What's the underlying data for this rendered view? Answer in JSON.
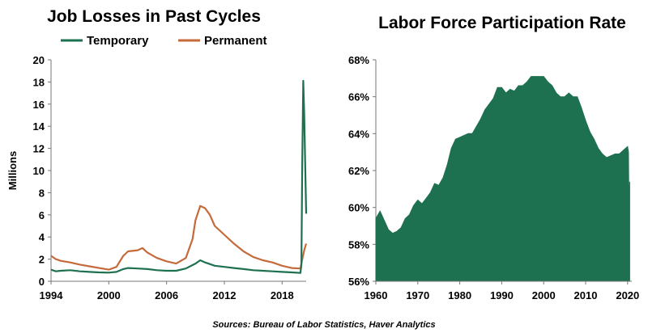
{
  "source_note": "Sources: Bureau of Labor Statistics, Haver Analytics",
  "chart_data": [
    {
      "type": "line",
      "title": "Job Losses in Past Cycles",
      "xlabel": "",
      "ylabel": "Millions",
      "xlim": [
        1994,
        2020.5
      ],
      "ylim": [
        0,
        20
      ],
      "xticks": [
        1994,
        2000,
        2006,
        2012,
        2018
      ],
      "yticks": [
        0,
        2,
        4,
        6,
        8,
        10,
        12,
        14,
        16,
        18,
        20
      ],
      "grid": false,
      "legend": "top",
      "series": [
        {
          "name": "Temporary",
          "color": "#1e7150",
          "points": [
            [
              1994,
              1.05
            ],
            [
              1994.5,
              0.9
            ],
            [
              1995,
              0.95
            ],
            [
              1996,
              1.0
            ],
            [
              1997,
              0.9
            ],
            [
              1998,
              0.85
            ],
            [
              1999,
              0.8
            ],
            [
              2000,
              0.78
            ],
            [
              2000.8,
              0.85
            ],
            [
              2001.5,
              1.1
            ],
            [
              2002,
              1.2
            ],
            [
              2003,
              1.15
            ],
            [
              2004,
              1.1
            ],
            [
              2005,
              1.0
            ],
            [
              2006,
              0.95
            ],
            [
              2007,
              0.95
            ],
            [
              2008,
              1.15
            ],
            [
              2009,
              1.6
            ],
            [
              2009.5,
              1.9
            ],
            [
              2010,
              1.7
            ],
            [
              2011,
              1.4
            ],
            [
              2012,
              1.3
            ],
            [
              2013,
              1.2
            ],
            [
              2014,
              1.1
            ],
            [
              2015,
              1.0
            ],
            [
              2016,
              0.95
            ],
            [
              2017,
              0.9
            ],
            [
              2018,
              0.85
            ],
            [
              2019,
              0.8
            ],
            [
              2019.9,
              0.75
            ],
            [
              2020.0,
              1.5
            ],
            [
              2020.1,
              11.0
            ],
            [
              2020.2,
              18.1
            ],
            [
              2020.3,
              15.0
            ],
            [
              2020.4,
              10.5
            ],
            [
              2020.5,
              6.1
            ]
          ]
        },
        {
          "name": "Permanent",
          "color": "#c46a3b",
          "points": [
            [
              1994,
              2.3
            ],
            [
              1994.5,
              2.0
            ],
            [
              1995,
              1.85
            ],
            [
              1996,
              1.7
            ],
            [
              1997,
              1.5
            ],
            [
              1998,
              1.35
            ],
            [
              1999,
              1.2
            ],
            [
              2000,
              1.05
            ],
            [
              2000.8,
              1.3
            ],
            [
              2001.5,
              2.3
            ],
            [
              2002,
              2.7
            ],
            [
              2003,
              2.8
            ],
            [
              2003.5,
              3.0
            ],
            [
              2004,
              2.6
            ],
            [
              2005,
              2.1
            ],
            [
              2006,
              1.8
            ],
            [
              2007,
              1.6
            ],
            [
              2008,
              2.1
            ],
            [
              2008.7,
              3.8
            ],
            [
              2009,
              5.5
            ],
            [
              2009.5,
              6.8
            ],
            [
              2010,
              6.6
            ],
            [
              2010.5,
              6.0
            ],
            [
              2011,
              5.0
            ],
            [
              2012,
              4.2
            ],
            [
              2013,
              3.4
            ],
            [
              2014,
              2.7
            ],
            [
              2015,
              2.2
            ],
            [
              2016,
              1.9
            ],
            [
              2017,
              1.7
            ],
            [
              2018,
              1.4
            ],
            [
              2019,
              1.2
            ],
            [
              2019.9,
              1.15
            ],
            [
              2020.1,
              2.0
            ],
            [
              2020.3,
              2.8
            ],
            [
              2020.5,
              3.4
            ]
          ]
        }
      ]
    },
    {
      "type": "area",
      "title": "Labor Force Participation Rate",
      "xlabel": "",
      "ylabel": "",
      "xlim": [
        1960,
        2021
      ],
      "ylim": [
        56,
        68
      ],
      "xticks": [
        1960,
        1970,
        1980,
        1990,
        2000,
        2010,
        2020
      ],
      "yticks": [
        56,
        58,
        60,
        62,
        64,
        66,
        68
      ],
      "ytick_suffix": "%",
      "grid": false,
      "series": [
        {
          "name": "",
          "color": "#1e7150",
          "points": [
            [
              1960,
              59.4
            ],
            [
              1961,
              59.8
            ],
            [
              1962,
              59.3
            ],
            [
              1963,
              58.8
            ],
            [
              1964,
              58.6
            ],
            [
              1965,
              58.7
            ],
            [
              1966,
              58.9
            ],
            [
              1967,
              59.4
            ],
            [
              1968,
              59.6
            ],
            [
              1969,
              60.1
            ],
            [
              1970,
              60.4
            ],
            [
              1971,
              60.2
            ],
            [
              1972,
              60.5
            ],
            [
              1973,
              60.8
            ],
            [
              1974,
              61.3
            ],
            [
              1975,
              61.2
            ],
            [
              1976,
              61.6
            ],
            [
              1977,
              62.3
            ],
            [
              1978,
              63.2
            ],
            [
              1979,
              63.7
            ],
            [
              1980,
              63.8
            ],
            [
              1981,
              63.9
            ],
            [
              1982,
              64.0
            ],
            [
              1983,
              64.0
            ],
            [
              1984,
              64.4
            ],
            [
              1985,
              64.8
            ],
            [
              1986,
              65.3
            ],
            [
              1987,
              65.6
            ],
            [
              1988,
              65.9
            ],
            [
              1989,
              66.5
            ],
            [
              1990,
              66.5
            ],
            [
              1991,
              66.2
            ],
            [
              1992,
              66.4
            ],
            [
              1993,
              66.3
            ],
            [
              1994,
              66.6
            ],
            [
              1995,
              66.6
            ],
            [
              1996,
              66.8
            ],
            [
              1997,
              67.1
            ],
            [
              1998,
              67.1
            ],
            [
              1999,
              67.1
            ],
            [
              2000,
              67.1
            ],
            [
              2001,
              66.8
            ],
            [
              2002,
              66.6
            ],
            [
              2003,
              66.2
            ],
            [
              2004,
              66.0
            ],
            [
              2005,
              66.0
            ],
            [
              2006,
              66.2
            ],
            [
              2007,
              66.0
            ],
            [
              2008,
              66.0
            ],
            [
              2009,
              65.4
            ],
            [
              2010,
              64.7
            ],
            [
              2011,
              64.1
            ],
            [
              2012,
              63.7
            ],
            [
              2013,
              63.2
            ],
            [
              2014,
              62.9
            ],
            [
              2015,
              62.7
            ],
            [
              2016,
              62.8
            ],
            [
              2017,
              62.9
            ],
            [
              2018,
              62.9
            ],
            [
              2019,
              63.1
            ],
            [
              2020.0,
              63.3
            ],
            [
              2020.2,
              63.0
            ],
            [
              2020.3,
              60.2
            ],
            [
              2020.5,
              61.4
            ]
          ]
        }
      ]
    }
  ]
}
